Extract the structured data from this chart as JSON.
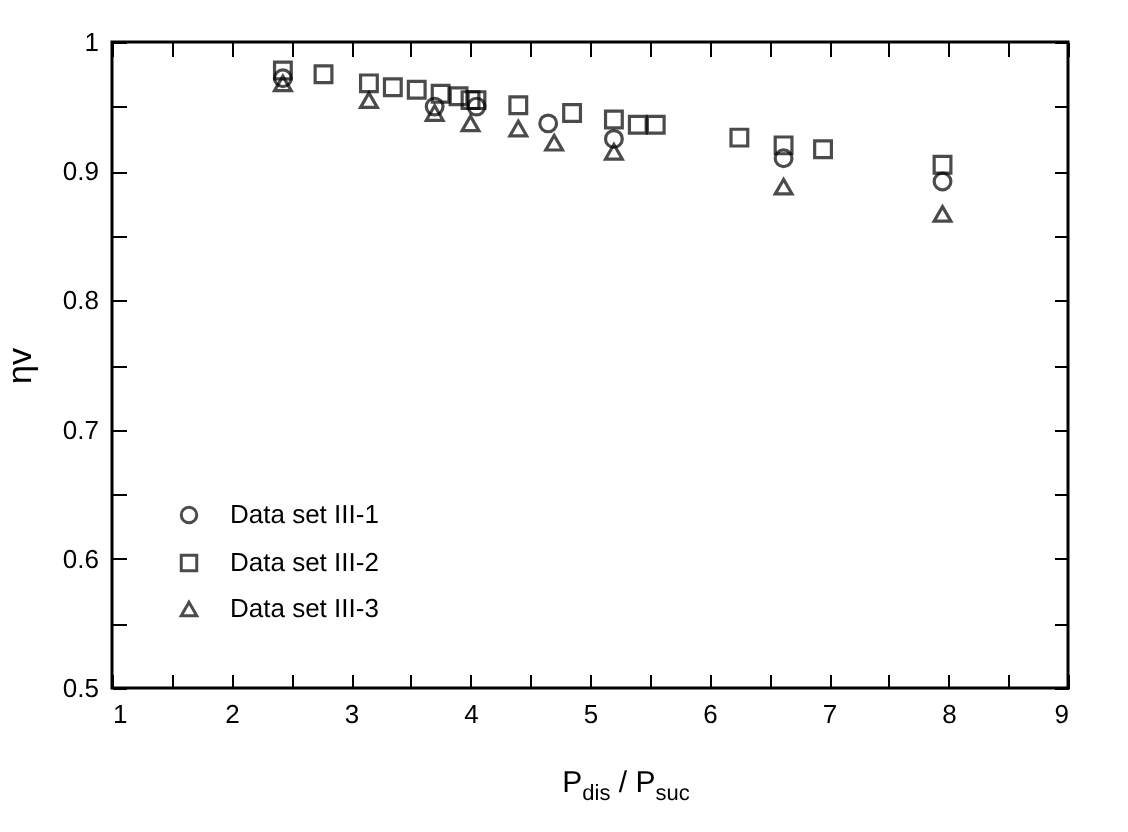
{
  "chart_data": {
    "type": "scatter",
    "xlabel": "P$_{dis}$ / P$_{suc}$",
    "ylabel": "ηv",
    "xlim": [
      1,
      9
    ],
    "xticks": [
      1,
      {
        "value": 1.5,
        "label": null
      },
      2,
      {
        "value": 2.5,
        "label": null
      },
      3,
      {
        "value": 3.5,
        "label": null
      },
      4,
      {
        "value": 4.5,
        "label": null
      },
      5,
      {
        "value": 5.5,
        "label": null
      },
      6,
      {
        "value": 6.5,
        "label": null
      },
      7,
      {
        "value": 7.5,
        "label": null
      },
      8,
      {
        "value": 8.5,
        "label": null
      },
      9
    ],
    "ylim": [
      0.5,
      1
    ],
    "yticks": [
      {
        "value": 0.5,
        "label": "0.5"
      },
      {
        "value": 0.55,
        "label": null
      },
      {
        "value": 0.6,
        "label": "0.6"
      },
      {
        "value": 0.65,
        "label": null
      },
      {
        "value": 0.7,
        "label": "0.7"
      },
      {
        "value": 0.75,
        "label": null
      },
      {
        "value": 0.8,
        "label": "0.8"
      },
      {
        "value": 0.85,
        "label": null
      },
      {
        "value": 0.9,
        "label": "0.9"
      },
      {
        "value": 0.95,
        "label": null
      },
      1
    ],
    "grid": false,
    "legend": "bottom left",
    "series": [
      {
        "name": "Data set III-1",
        "color": "#000000",
        "marker": "circle",
        "x": [
          2.43,
          3.7,
          4.05,
          4.65,
          5.2,
          6.62,
          7.95
        ],
        "values": [
          0.972,
          0.95,
          0.95,
          0.937,
          0.925,
          0.91,
          0.892
        ]
      },
      {
        "name": "Data set III-2",
        "color": "#000000",
        "marker": "square",
        "x": [
          2.43,
          2.77,
          3.15,
          3.35,
          3.55,
          3.75,
          3.9,
          4.0,
          4.05,
          4.4,
          4.85,
          5.2,
          5.4,
          5.55,
          6.25,
          6.62,
          6.95,
          7.95
        ],
        "values": [
          0.978,
          0.975,
          0.968,
          0.965,
          0.963,
          0.96,
          0.958,
          0.955,
          0.955,
          0.951,
          0.945,
          0.94,
          0.936,
          0.936,
          0.926,
          0.92,
          0.917,
          0.905
        ]
      },
      {
        "name": "Data set III-3",
        "color": "#000000",
        "marker": "triangle",
        "x": [
          2.43,
          3.15,
          3.7,
          4.0,
          4.4,
          4.7,
          5.2,
          6.62,
          7.95
        ],
        "values": [
          0.968,
          0.955,
          0.945,
          0.937,
          0.933,
          0.922,
          0.915,
          0.888,
          0.867
        ]
      }
    ]
  }
}
